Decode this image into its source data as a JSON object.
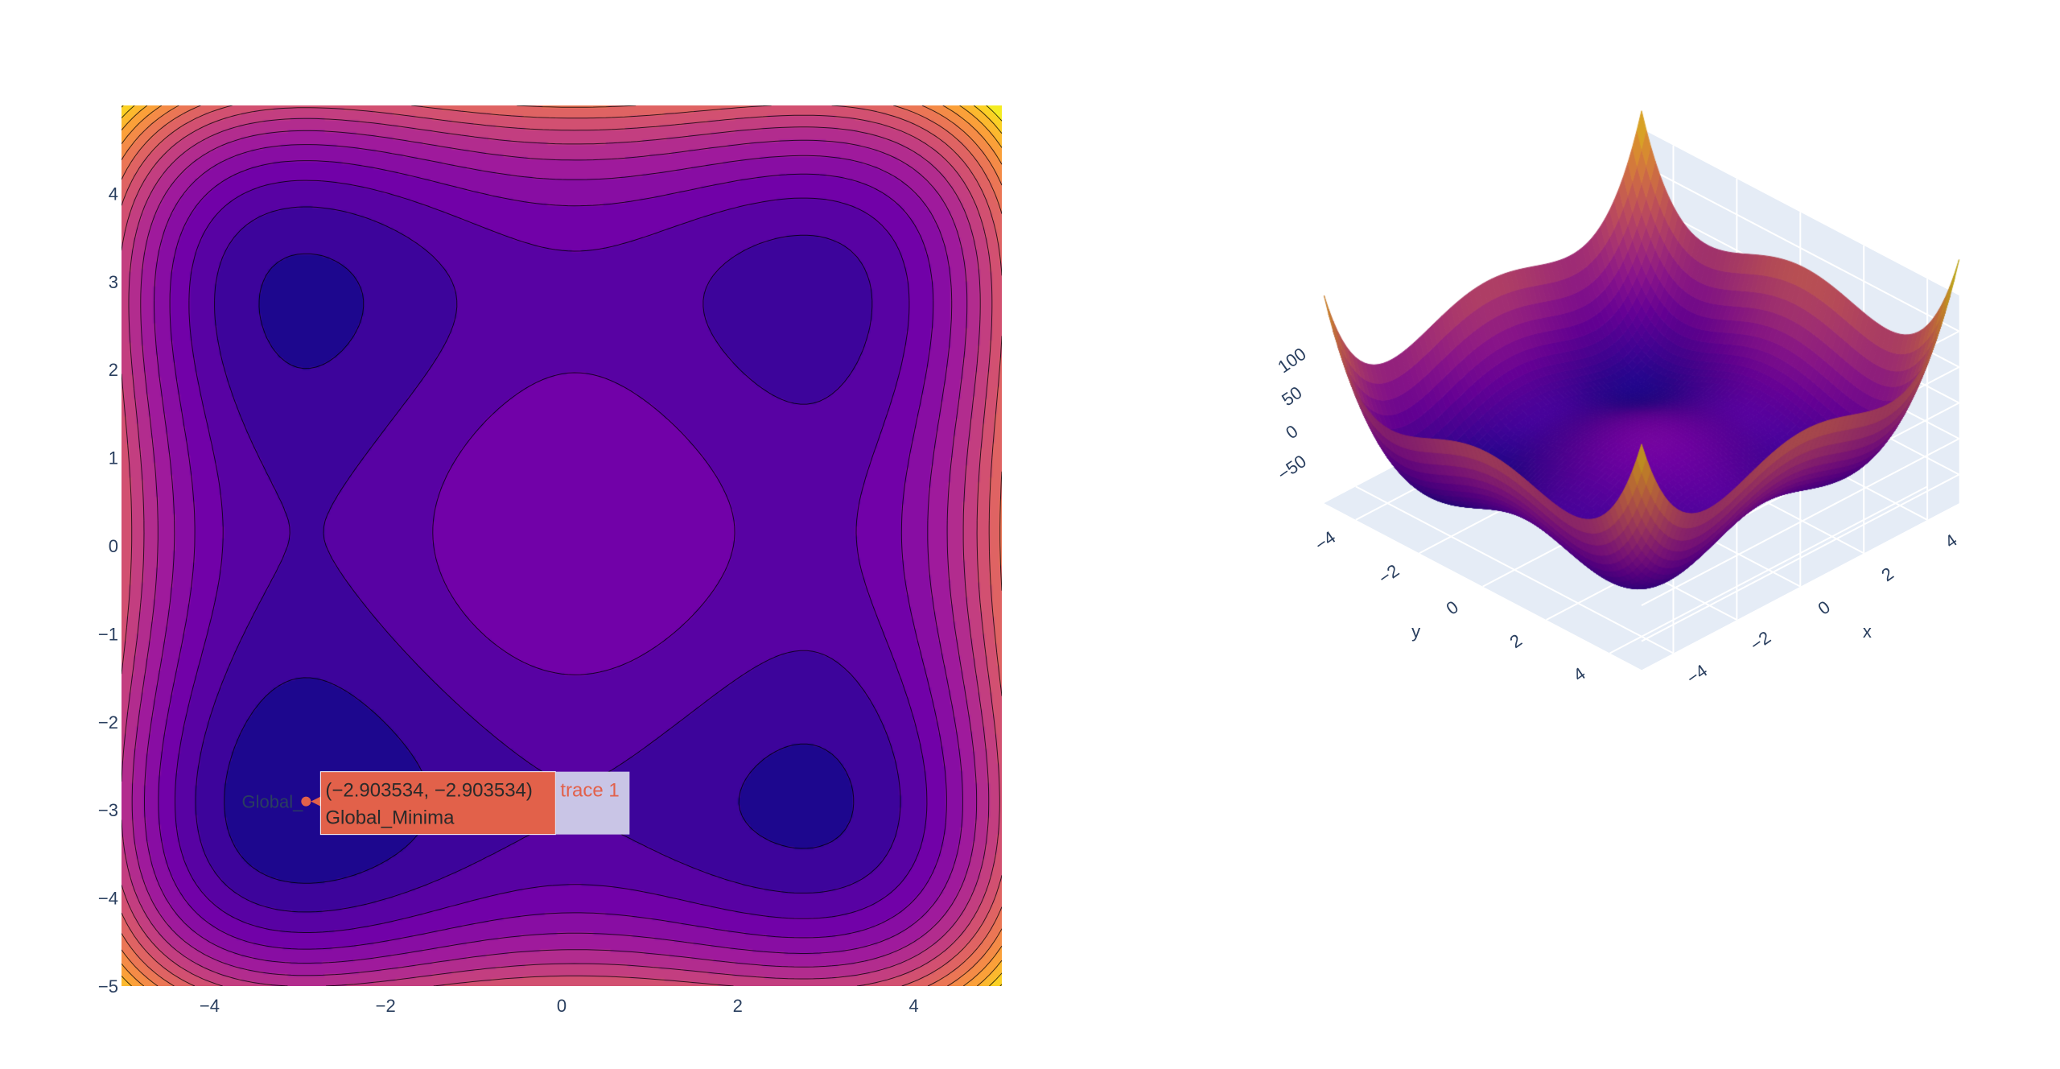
{
  "colors": {
    "colorscale": [
      "#0d0887",
      "#46039f",
      "#7201a8",
      "#9c179e",
      "#bd3786",
      "#d8576b",
      "#ed7953",
      "#fb9f3a",
      "#fdca26",
      "#f0f921"
    ],
    "tick_text": "#2a3f5f",
    "scene_bg": "#e5ecf6",
    "hover_bg": "#e2614a",
    "hover_trace_bg": "#c9c5e6",
    "marker": "#e2614a"
  },
  "chart_data": [
    {
      "type": "contour",
      "function": "styblinski-tang 2D",
      "x_range": [
        -5,
        5
      ],
      "y_range": [
        -5,
        5
      ],
      "x_ticks": [
        "−4",
        "−2",
        "0",
        "2",
        "4"
      ],
      "y_ticks": [
        "4",
        "3",
        "2",
        "1",
        "0",
        "−1",
        "−2",
        "−3",
        "−4",
        "−5"
      ],
      "colorscale": "plasma",
      "contour_lines": true,
      "marker": {
        "label": "Global_",
        "x": -2.903534,
        "y": -2.903534,
        "text": "Global_Minima"
      },
      "hover": {
        "coords": "(−2.903534, −2.903534)",
        "text": "Global_Minima",
        "trace": "trace 1"
      }
    },
    {
      "type": "surface",
      "function": "styblinski-tang 2D",
      "x_range": [
        -5,
        5
      ],
      "y_range": [
        -5,
        5
      ],
      "z_range": [
        -80,
        200
      ],
      "x_title": "x",
      "y_title": "y",
      "x_ticks": [
        "−4",
        "−2",
        "0",
        "2",
        "4"
      ],
      "y_ticks": [
        "−4",
        "−2",
        "0",
        "2",
        "4"
      ],
      "z_ticks": [
        "100",
        "50",
        "0",
        "−50"
      ],
      "colorscale": "plasma"
    }
  ]
}
